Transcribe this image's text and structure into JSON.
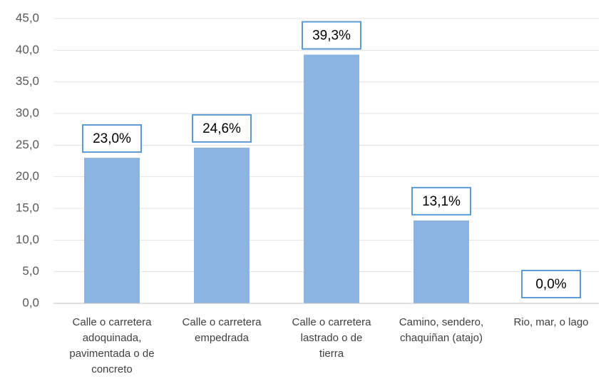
{
  "chart_data": {
    "type": "bar",
    "categories": [
      "Calle o carretera adoquinada, pavimentada o de concreto",
      "Calle o carretera empedrada",
      "Calle o carretera lastrado o de tierra",
      "Camino, sendero, chaquiñan (atajo)",
      "Rio, mar, o lago"
    ],
    "values": [
      23.0,
      24.6,
      39.3,
      13.1,
      0.0
    ],
    "value_labels": [
      "23,0%",
      "24,6%",
      "39,3%",
      "13,1%",
      "0,0%"
    ],
    "color": "#8cb4e0",
    "ylim": [
      0,
      45
    ],
    "yticks": [
      {
        "value": 0,
        "label": "0,0"
      },
      {
        "value": 5,
        "label": "5,0"
      },
      {
        "value": 10,
        "label": "10,0"
      },
      {
        "value": 15,
        "label": "15,0"
      },
      {
        "value": 20,
        "label": "20,0"
      },
      {
        "value": 25,
        "label": "25,0"
      },
      {
        "value": 30,
        "label": "30,0"
      },
      {
        "value": 35,
        "label": "35,0"
      },
      {
        "value": 40,
        "label": "40,0"
      },
      {
        "value": 45,
        "label": "45,0"
      }
    ],
    "grid": true
  }
}
